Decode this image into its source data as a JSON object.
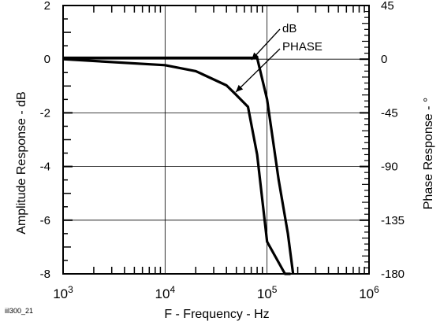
{
  "chart_data": {
    "type": "line",
    "code_label": "iil300_21",
    "xlabel": "F - Frequency - Hz",
    "ylabel": "Amplitude Response - dB",
    "ylabel_right": "Phase Response - °",
    "x_scale": "log",
    "xlim": [
      1000,
      1000000
    ],
    "ylim": [
      -8,
      2
    ],
    "y2lim": [
      -180,
      45
    ],
    "grid": true,
    "x_ticks": [
      {
        "value": 1000,
        "base": "10",
        "exp": "3"
      },
      {
        "value": 10000,
        "base": "10",
        "exp": "4"
      },
      {
        "value": 100000,
        "base": "10",
        "exp": "5"
      },
      {
        "value": 1000000,
        "base": "10",
        "exp": "6"
      }
    ],
    "y_ticks": [
      "2",
      "0",
      "-2",
      "-4",
      "-6",
      "-8"
    ],
    "y2_ticks": [
      "45",
      "0",
      "-45",
      "-90",
      "-135",
      "-180"
    ],
    "annotations": {
      "db": "dB",
      "phase": "PHASE"
    },
    "series": [
      {
        "name": "dB",
        "axis": "left",
        "x": [
          1000,
          10000,
          30000,
          60000,
          80000,
          100000,
          130000,
          160000,
          180000
        ],
        "y": [
          0.05,
          0.05,
          0.05,
          0.05,
          0.05,
          -1.5,
          -4.5,
          -6.5,
          -8
        ]
      },
      {
        "name": "PHASE",
        "axis": "right",
        "x": [
          1000,
          10000,
          20000,
          40000,
          50000,
          65000,
          80000,
          100000,
          150000,
          170000
        ],
        "y": [
          0,
          -5,
          -10,
          -22,
          -30,
          -40,
          -80,
          -153,
          -180,
          -180
        ]
      }
    ]
  }
}
